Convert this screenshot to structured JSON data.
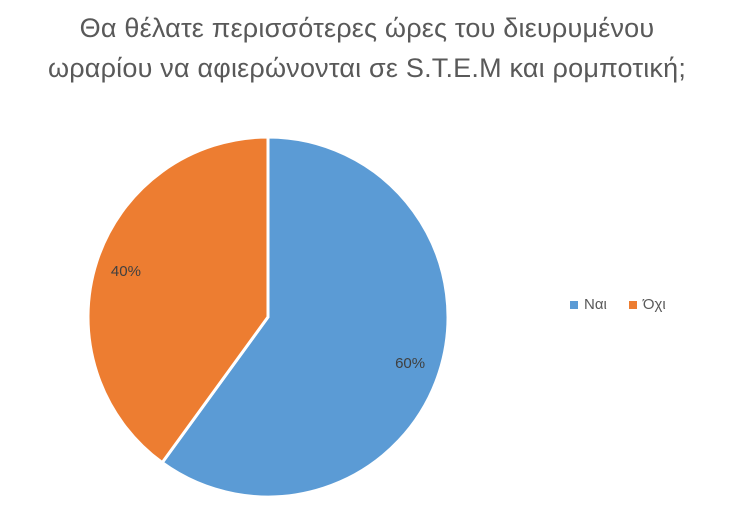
{
  "chart_data": {
    "type": "pie",
    "title_lines": [
      "Θα θέλατε περισσότερες ώρες του διευρυμένου",
      "ωραρίου να αφιερώνονται σε S.T.E.M και ρομποτική;"
    ],
    "categories": [
      "Ναι",
      "Όχι"
    ],
    "values": [
      60,
      40
    ],
    "data_labels": [
      "60%",
      "40%"
    ],
    "colors": [
      "#5B9BD5",
      "#ED7D31"
    ],
    "legend_position": "right"
  }
}
